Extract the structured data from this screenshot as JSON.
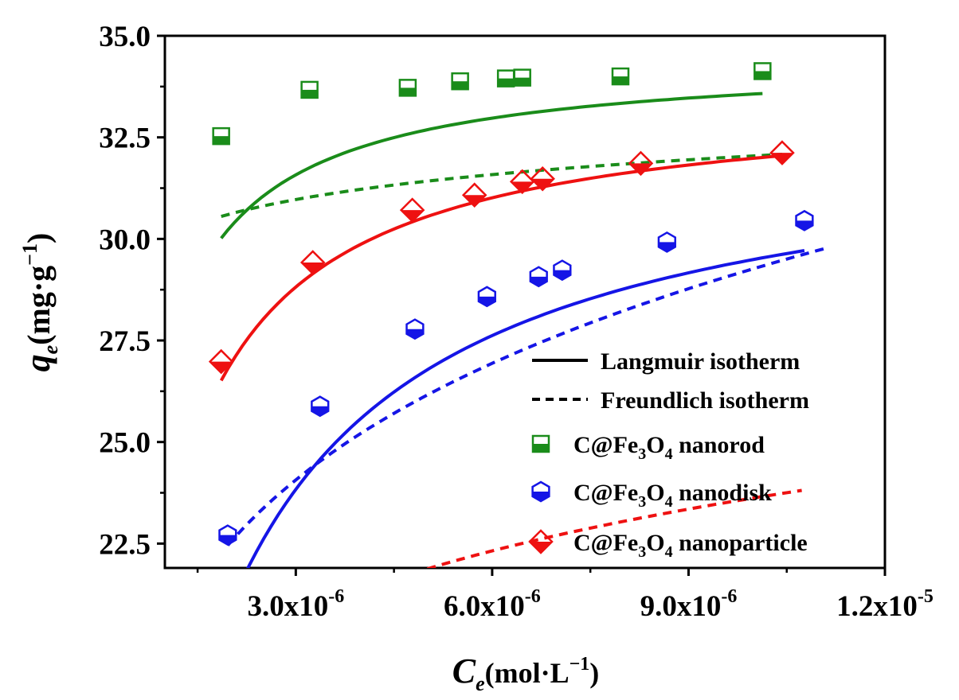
{
  "chart_data": {
    "type": "scatter",
    "xlabel": {
      "symbol": "C",
      "sub": "e",
      "unit": "(mol·L",
      "exp": "−1",
      "close": ")"
    },
    "ylabel": {
      "symbol": "q",
      "sub": "e",
      "unit": "(mg·g",
      "exp": "−1",
      "close": ")"
    },
    "xlim": [
      1e-06,
      1.2e-05
    ],
    "ylim": [
      21.9,
      35.0
    ],
    "x_ticks": [
      {
        "value": 3e-06,
        "mantissa": "3.0x10",
        "exp": "-6"
      },
      {
        "value": 6e-06,
        "mantissa": "6.0x10",
        "exp": "-6"
      },
      {
        "value": 9e-06,
        "mantissa": "9.0x10",
        "exp": "-6"
      },
      {
        "value": 1.2e-05,
        "mantissa": "1.2x10",
        "exp": "-5"
      }
    ],
    "y_ticks": [
      {
        "value": 22.5,
        "label": "22.5"
      },
      {
        "value": 25.0,
        "label": "25.0"
      },
      {
        "value": 27.5,
        "label": "27.5"
      },
      {
        "value": 30.0,
        "label": "30.0"
      },
      {
        "value": 32.5,
        "label": "32.5"
      },
      {
        "value": 35.0,
        "label": "35.0"
      }
    ],
    "legend_position": "bottom-right",
    "legend": {
      "lines": [
        {
          "label": "Langmuir isotherm",
          "style": "solid"
        },
        {
          "label": "Freundlich isotherm",
          "style": "dashed"
        }
      ]
    },
    "series": [
      {
        "name": {
          "pre": "C@Fe",
          "sub1": "3",
          "mid": "O",
          "sub2": "4",
          "post": " nanorod"
        },
        "color": "#1a8c1a",
        "marker": "square",
        "x": [
          1.86e-06,
          3.21e-06,
          4.71e-06,
          5.51e-06,
          6.21e-06,
          6.46e-06,
          7.96e-06,
          1.013e-05
        ],
        "y": [
          32.53,
          33.67,
          33.72,
          33.88,
          33.95,
          33.97,
          34.0,
          34.13
        ],
        "langmuir": {
          "qmax": 34.5,
          "K": 3600000.0
        },
        "freundlich": {
          "Kf": 44.4,
          "n": 35.3
        }
      },
      {
        "name": {
          "pre": "C@Fe",
          "sub1": "3",
          "mid": "O",
          "sub2": "4",
          "post": " nanodisk"
        },
        "color": "#1515e6",
        "marker": "hexagon",
        "x": [
          1.96e-06,
          3.37e-06,
          4.82e-06,
          5.92e-06,
          6.71e-06,
          7.07e-06,
          8.67e-06,
          1.077e-05
        ],
        "y": [
          22.71,
          25.88,
          27.78,
          28.58,
          29.07,
          29.23,
          29.92,
          30.45
        ],
        "langmuir": {
          "qmax": 32.84,
          "K": 882000.0
        },
        "freundlich": {
          "Kf": 190.3,
          "n": 6.15
        }
      },
      {
        "name": {
          "pre": "C@Fe",
          "sub1": "3",
          "mid": "O",
          "sub2": "4",
          "post": " nanoparticle"
        },
        "color": "#ee1111",
        "marker": "diamond",
        "x": [
          1.86e-06,
          3.26e-06,
          4.78e-06,
          5.73e-06,
          6.46e-06,
          6.77e-06,
          8.27e-06,
          1.043e-05
        ],
        "y": [
          26.98,
          29.42,
          30.71,
          31.08,
          31.41,
          31.48,
          31.86,
          32.12
        ],
        "langmuir": {
          "qmax": 33.57,
          "K": 2020000.0
        },
        "freundlich": {
          "Kf": 84.9,
          "n": 9.0
        }
      }
    ]
  }
}
